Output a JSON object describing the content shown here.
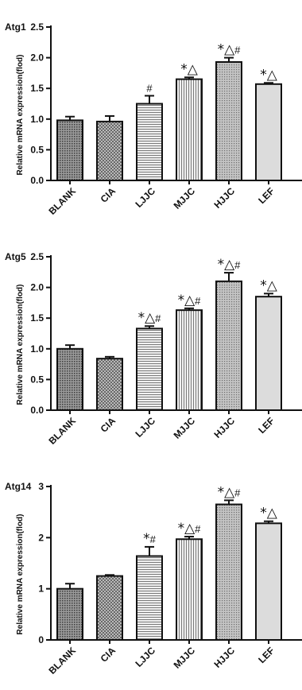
{
  "chart_data": [
    {
      "type": "bar",
      "title": "Atg1",
      "ylabel": "Relative mRNA expression(flod)",
      "xlabel": "",
      "categories": [
        "BLANK",
        "CIA",
        "LJJC",
        "MJJC",
        "HJJC",
        "LEF"
      ],
      "values": [
        0.98,
        0.96,
        1.25,
        1.65,
        1.93,
        1.57
      ],
      "errors": [
        0.06,
        0.09,
        0.13,
        0.03,
        0.07,
        0.02
      ],
      "annotations": [
        "",
        "",
        "#",
        "*△",
        "*△#",
        "*△"
      ],
      "ylim": [
        0,
        2.5
      ],
      "yticks": [
        "0.0",
        "0.5",
        "1.0",
        "1.5",
        "2.0",
        "2.5"
      ],
      "patterns": [
        "dots",
        "cross",
        "hlines",
        "vlines",
        "dots-light",
        "plain"
      ]
    },
    {
      "type": "bar",
      "title": "Atg5",
      "ylabel": "Relative mRNA expression(flod)",
      "xlabel": "",
      "categories": [
        "BLANK",
        "CIA",
        "LJJC",
        "MJJC",
        "HJJC",
        "LEF"
      ],
      "values": [
        1.0,
        0.84,
        1.33,
        1.63,
        2.1,
        1.85
      ],
      "errors": [
        0.06,
        0.03,
        0.04,
        0.03,
        0.14,
        0.05
      ],
      "annotations": [
        "",
        "",
        "*△#",
        "*△#",
        "*△#",
        "*△"
      ],
      "ylim": [
        0,
        2.5
      ],
      "yticks": [
        "0.0",
        "0.5",
        "1.0",
        "1.5",
        "2.0",
        "2.5"
      ],
      "patterns": [
        "dots",
        "cross",
        "hlines",
        "vlines",
        "dots-light",
        "plain"
      ]
    },
    {
      "type": "bar",
      "title": "Atg14",
      "ylabel": "Relative mRNA expression(flod)",
      "xlabel": "",
      "categories": [
        "BLANK",
        "CIA",
        "LJJC",
        "MJJC",
        "HJJC",
        "LEF"
      ],
      "values": [
        1.0,
        1.25,
        1.64,
        1.97,
        2.65,
        2.28
      ],
      "errors": [
        0.1,
        0.02,
        0.18,
        0.05,
        0.08,
        0.04
      ],
      "annotations": [
        "",
        "",
        "*#",
        "*△#",
        "*△#",
        "*△"
      ],
      "ylim": [
        0,
        3
      ],
      "yticks": [
        "0",
        "1",
        "2",
        "3"
      ],
      "patterns": [
        "dots",
        "cross",
        "hlines",
        "vlines",
        "dots-light",
        "plain"
      ]
    }
  ]
}
